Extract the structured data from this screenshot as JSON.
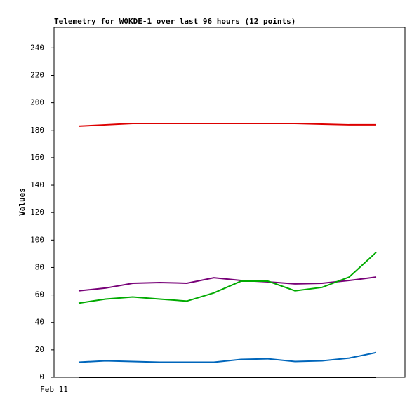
{
  "chart_data": {
    "type": "line",
    "title": "Telemetry for W0KDE-1 over last 96 hours (12 points)",
    "y_label": "Values",
    "x_start_label": "Feb 11",
    "ylim": [
      0,
      255
    ],
    "yticks": [
      0,
      20,
      40,
      60,
      80,
      100,
      120,
      140,
      160,
      180,
      200,
      220,
      240
    ],
    "grid": false,
    "series": [
      {
        "color": "#dd0000",
        "values": [
          183,
          184,
          185,
          185,
          185,
          185,
          185,
          185,
          185,
          184.5,
          184,
          184
        ]
      },
      {
        "color": "#770077",
        "values": [
          63,
          65,
          68.5,
          69,
          68.5,
          72.5,
          70.5,
          69.5,
          68,
          68.5,
          70.5,
          73
        ]
      },
      {
        "color": "#00aa00",
        "values": [
          54,
          57,
          58.5,
          57,
          55.5,
          61.5,
          70,
          70,
          63,
          65.5,
          73,
          91
        ]
      },
      {
        "color": "#0066bb",
        "values": [
          11,
          12,
          11.5,
          11,
          11,
          11,
          13,
          13.5,
          11.5,
          12,
          14,
          18
        ]
      },
      {
        "color": "#000000",
        "values": [
          0,
          0,
          0,
          0,
          0,
          0,
          0,
          0,
          0,
          0,
          0,
          0
        ]
      }
    ]
  }
}
